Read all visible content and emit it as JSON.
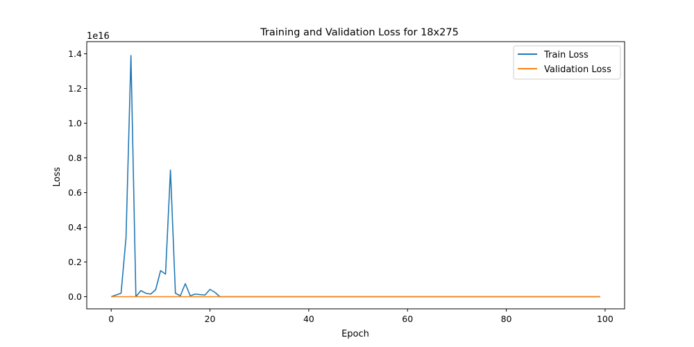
{
  "chart_data": {
    "type": "line",
    "title": "Training and Validation Loss for 18x275",
    "xlabel": "Epoch",
    "ylabel": "Loss",
    "y_offset_label": "1e16",
    "xlim": [
      -4.95,
      103.95
    ],
    "ylim": [
      -0.07,
      1.47
    ],
    "y_unit_note": "values in units of 1e16",
    "xticks": [
      0,
      20,
      40,
      60,
      80,
      100
    ],
    "xtick_labels": [
      "0",
      "20",
      "40",
      "60",
      "80",
      "100"
    ],
    "yticks": [
      0.0,
      0.2,
      0.4,
      0.6,
      0.8,
      1.0,
      1.2,
      1.4
    ],
    "ytick_labels": [
      "0.0",
      "0.2",
      "0.4",
      "0.6",
      "0.8",
      "1.0",
      "1.2",
      "1.4"
    ],
    "grid": false,
    "legend_position": "top-right",
    "series": [
      {
        "name": "Train Loss",
        "color": "#1f77b4",
        "x": [
          0,
          1,
          2,
          3,
          4,
          5,
          6,
          7,
          8,
          9,
          10,
          11,
          12,
          13,
          14,
          15,
          16,
          17,
          18,
          19,
          20,
          21,
          22,
          23,
          24,
          25,
          26,
          27,
          28,
          29,
          30,
          31,
          32,
          33,
          34,
          35,
          36,
          37,
          38,
          39,
          40,
          41,
          42,
          43,
          44,
          45,
          46,
          47,
          48,
          49,
          50,
          51,
          52,
          53,
          54,
          55,
          56,
          57,
          58,
          59,
          60,
          61,
          62,
          63,
          64,
          65,
          66,
          67,
          68,
          69,
          70,
          71,
          72,
          73,
          74,
          75,
          76,
          77,
          78,
          79,
          80,
          81,
          82,
          83,
          84,
          85,
          86,
          87,
          88,
          89,
          90,
          91,
          92,
          93,
          94,
          95,
          96,
          97,
          98,
          99
        ],
        "y": [
          0.0,
          0.01,
          0.02,
          0.34,
          1.39,
          0.0,
          0.035,
          0.02,
          0.015,
          0.04,
          0.15,
          0.13,
          0.73,
          0.02,
          0.005,
          0.075,
          0.005,
          0.015,
          0.012,
          0.01,
          0.042,
          0.025,
          0.0,
          0.0,
          0.0,
          0.0,
          0.0,
          0.0,
          0.0,
          0.0,
          0.0,
          0.0,
          0.0,
          0.0,
          0.0,
          0.0,
          0.0,
          0.0,
          0.0,
          0.0,
          0.0,
          0.0,
          0.0,
          0.0,
          0.0,
          0.0,
          0.0,
          0.0,
          0.0,
          0.0,
          0.0,
          0.0,
          0.0,
          0.0,
          0.0,
          0.0,
          0.0,
          0.0,
          0.0,
          0.0,
          0.0,
          0.0,
          0.0,
          0.0,
          0.0,
          0.0,
          0.0,
          0.0,
          0.0,
          0.0,
          0.0,
          0.0,
          0.0,
          0.0,
          0.0,
          0.0,
          0.0,
          0.0,
          0.0,
          0.0,
          0.0,
          0.0,
          0.0,
          0.0,
          0.0,
          0.0,
          0.0,
          0.0,
          0.0,
          0.0,
          0.0,
          0.0,
          0.0,
          0.0,
          0.0,
          0.0,
          0.0,
          0.0,
          0.0,
          0.0
        ]
      },
      {
        "name": "Validation Loss",
        "color": "#ff7f0e",
        "x": [
          0,
          1,
          2,
          3,
          4,
          5,
          6,
          7,
          8,
          9,
          10,
          11,
          12,
          13,
          14,
          15,
          16,
          17,
          18,
          19,
          20,
          21,
          22,
          23,
          24,
          25,
          26,
          27,
          28,
          29,
          30,
          31,
          32,
          33,
          34,
          35,
          36,
          37,
          38,
          39,
          40,
          41,
          42,
          43,
          44,
          45,
          46,
          47,
          48,
          49,
          50,
          51,
          52,
          53,
          54,
          55,
          56,
          57,
          58,
          59,
          60,
          61,
          62,
          63,
          64,
          65,
          66,
          67,
          68,
          69,
          70,
          71,
          72,
          73,
          74,
          75,
          76,
          77,
          78,
          79,
          80,
          81,
          82,
          83,
          84,
          85,
          86,
          87,
          88,
          89,
          90,
          91,
          92,
          93,
          94,
          95,
          96,
          97,
          98,
          99
        ],
        "y": [
          0.0,
          0.0,
          0.0,
          0.0,
          0.0,
          0.0,
          0.0,
          0.0,
          0.0,
          0.0,
          0.0,
          0.0,
          0.0,
          0.0,
          0.0,
          0.0,
          0.0,
          0.0,
          0.0,
          0.0,
          0.0,
          0.0,
          0.0,
          0.0,
          0.0,
          0.0,
          0.0,
          0.0,
          0.0,
          0.0,
          0.0,
          0.0,
          0.0,
          0.0,
          0.0,
          0.0,
          0.0,
          0.0,
          0.0,
          0.0,
          0.0,
          0.0,
          0.0,
          0.0,
          0.0,
          0.0,
          0.0,
          0.0,
          0.0,
          0.0,
          0.0,
          0.0,
          0.0,
          0.0,
          0.0,
          0.0,
          0.0,
          0.0,
          0.0,
          0.0,
          0.0,
          0.0,
          0.0,
          0.0,
          0.0,
          0.0,
          0.0,
          0.0,
          0.0,
          0.0,
          0.0,
          0.0,
          0.0,
          0.0,
          0.0,
          0.0,
          0.0,
          0.0,
          0.0,
          0.0,
          0.0,
          0.0,
          0.0,
          0.0,
          0.0,
          0.0,
          0.0,
          0.0,
          0.0,
          0.0,
          0.0,
          0.0,
          0.0,
          0.0,
          0.0,
          0.0,
          0.0,
          0.0,
          0.0,
          0.0
        ]
      }
    ]
  }
}
